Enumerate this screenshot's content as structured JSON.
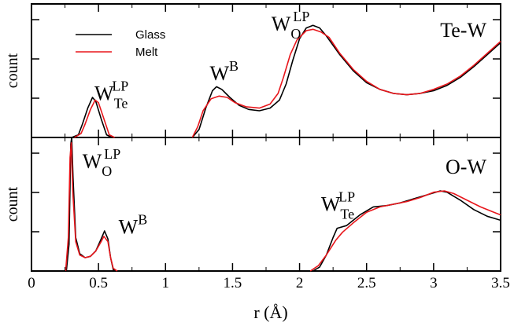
{
  "chart_data": {
    "type": "line",
    "xlabel": "r (Å)",
    "xlim": [
      0,
      3.5
    ],
    "x_ticks": [
      {
        "value": 0,
        "label": "0"
      },
      {
        "value": 0.5,
        "label": "0.5"
      },
      {
        "value": 1,
        "label": "1"
      },
      {
        "value": 1.5,
        "label": "1.5"
      },
      {
        "value": 2,
        "label": "2"
      },
      {
        "value": 2.5,
        "label": "2.5"
      },
      {
        "value": 3,
        "label": "3"
      },
      {
        "value": 3.5,
        "label": "3.5"
      }
    ],
    "legend": {
      "placement": "top-left",
      "entries": [
        {
          "name": "Glass",
          "color": "#000000"
        },
        {
          "name": "Melt",
          "color": "#e8161b"
        }
      ]
    },
    "panels": [
      {
        "id": "top",
        "ylabel": "count",
        "title": "Te-W",
        "ylim": [
          0,
          1
        ],
        "annotations": [
          {
            "base": "W",
            "sub": "Te",
            "sup": "LP",
            "x": 0.47,
            "y": 0.28
          },
          {
            "base": "W",
            "sub": "",
            "sup": "B",
            "x": 1.33,
            "y": 0.43
          },
          {
            "base": "W",
            "sub": "O",
            "sup": "LP",
            "x": 1.79,
            "y": 0.8
          }
        ],
        "series": [
          {
            "name": "Glass",
            "points": [
              [
                0.3,
                0.0
              ],
              [
                0.35,
                0.02
              ],
              [
                0.38,
                0.1
              ],
              [
                0.42,
                0.22
              ],
              [
                0.455,
                0.3
              ],
              [
                0.48,
                0.27
              ],
              [
                0.52,
                0.14
              ],
              [
                0.56,
                0.02
              ],
              [
                0.6,
                0.0
              ],
              null,
              [
                1.2,
                0.0
              ],
              [
                1.25,
                0.06
              ],
              [
                1.3,
                0.22
              ],
              [
                1.35,
                0.35
              ],
              [
                1.38,
                0.38
              ],
              [
                1.42,
                0.36
              ],
              [
                1.48,
                0.3
              ],
              [
                1.55,
                0.24
              ],
              [
                1.62,
                0.21
              ],
              [
                1.7,
                0.2
              ],
              [
                1.78,
                0.22
              ],
              [
                1.85,
                0.28
              ],
              [
                1.9,
                0.4
              ],
              [
                1.95,
                0.58
              ],
              [
                2.0,
                0.74
              ],
              [
                2.05,
                0.82
              ],
              [
                2.1,
                0.84
              ],
              [
                2.15,
                0.82
              ],
              [
                2.2,
                0.76
              ],
              [
                2.3,
                0.62
              ],
              [
                2.4,
                0.5
              ],
              [
                2.5,
                0.41
              ],
              [
                2.6,
                0.36
              ],
              [
                2.7,
                0.33
              ],
              [
                2.8,
                0.32
              ],
              [
                2.9,
                0.33
              ],
              [
                3.0,
                0.35
              ],
              [
                3.1,
                0.39
              ],
              [
                3.2,
                0.45
              ],
              [
                3.3,
                0.53
              ],
              [
                3.4,
                0.62
              ],
              [
                3.5,
                0.71
              ]
            ]
          },
          {
            "name": "Melt",
            "points": [
              [
                0.32,
                0.0
              ],
              [
                0.37,
                0.03
              ],
              [
                0.4,
                0.1
              ],
              [
                0.44,
                0.21
              ],
              [
                0.475,
                0.28
              ],
              [
                0.5,
                0.26
              ],
              [
                0.54,
                0.14
              ],
              [
                0.58,
                0.02
              ],
              [
                0.62,
                0.0
              ],
              null,
              [
                1.2,
                0.0
              ],
              [
                1.24,
                0.08
              ],
              [
                1.28,
                0.2
              ],
              [
                1.34,
                0.29
              ],
              [
                1.4,
                0.31
              ],
              [
                1.46,
                0.3
              ],
              [
                1.52,
                0.26
              ],
              [
                1.6,
                0.23
              ],
              [
                1.7,
                0.22
              ],
              [
                1.78,
                0.25
              ],
              [
                1.84,
                0.33
              ],
              [
                1.88,
                0.45
              ],
              [
                1.93,
                0.62
              ],
              [
                1.98,
                0.73
              ],
              [
                2.05,
                0.8
              ],
              [
                2.1,
                0.81
              ],
              [
                2.16,
                0.79
              ],
              [
                2.22,
                0.75
              ],
              [
                2.3,
                0.63
              ],
              [
                2.4,
                0.51
              ],
              [
                2.5,
                0.42
              ],
              [
                2.6,
                0.36
              ],
              [
                2.7,
                0.33
              ],
              [
                2.8,
                0.32
              ],
              [
                2.9,
                0.33
              ],
              [
                3.0,
                0.36
              ],
              [
                3.1,
                0.4
              ],
              [
                3.2,
                0.46
              ],
              [
                3.3,
                0.54
              ],
              [
                3.4,
                0.63
              ],
              [
                3.5,
                0.72
              ]
            ]
          }
        ]
      },
      {
        "id": "bottom",
        "ylabel": "count",
        "title": "O-W",
        "ylim": [
          0,
          1
        ],
        "annotations": [
          {
            "base": "W",
            "sub": "O",
            "sup": "LP",
            "x": 0.38,
            "y": 0.77
          },
          {
            "base": "W",
            "sub": "",
            "sup": "B",
            "x": 0.65,
            "y": 0.28
          },
          {
            "base": "W",
            "sub": "Te",
            "sup": "LP",
            "x": 2.16,
            "y": 0.45
          }
        ],
        "series": [
          {
            "name": "Glass",
            "points": [
              [
                0.26,
                0.0
              ],
              [
                0.28,
                0.2
              ],
              [
                0.293,
                0.95
              ],
              [
                0.3,
                1.0
              ],
              [
                0.31,
                0.7
              ],
              [
                0.33,
                0.25
              ],
              [
                0.36,
                0.13
              ],
              [
                0.4,
                0.1
              ],
              [
                0.44,
                0.11
              ],
              [
                0.48,
                0.15
              ],
              [
                0.52,
                0.24
              ],
              [
                0.545,
                0.3
              ],
              [
                0.57,
                0.24
              ],
              [
                0.59,
                0.1
              ],
              [
                0.61,
                0.01
              ],
              [
                0.63,
                0.0
              ],
              null,
              [
                2.1,
                0.0
              ],
              [
                2.15,
                0.03
              ],
              [
                2.2,
                0.12
              ],
              [
                2.25,
                0.25
              ],
              [
                2.28,
                0.32
              ],
              [
                2.35,
                0.34
              ],
              [
                2.45,
                0.42
              ],
              [
                2.55,
                0.48
              ],
              [
                2.65,
                0.49
              ],
              [
                2.75,
                0.51
              ],
              [
                2.85,
                0.54
              ],
              [
                2.95,
                0.57
              ],
              [
                3.05,
                0.6
              ],
              [
                3.1,
                0.59
              ],
              [
                3.2,
                0.53
              ],
              [
                3.3,
                0.46
              ],
              [
                3.4,
                0.41
              ],
              [
                3.5,
                0.38
              ]
            ]
          },
          {
            "name": "Melt",
            "points": [
              [
                0.255,
                0.0
              ],
              [
                0.275,
                0.25
              ],
              [
                0.288,
                0.85
              ],
              [
                0.297,
                0.96
              ],
              [
                0.308,
                0.6
              ],
              [
                0.33,
                0.22
              ],
              [
                0.36,
                0.12
              ],
              [
                0.4,
                0.1
              ],
              [
                0.44,
                0.11
              ],
              [
                0.48,
                0.15
              ],
              [
                0.52,
                0.22
              ],
              [
                0.54,
                0.26
              ],
              [
                0.57,
                0.22
              ],
              [
                0.59,
                0.1
              ],
              [
                0.61,
                0.02
              ],
              [
                0.64,
                0.0
              ],
              null,
              [
                2.08,
                0.0
              ],
              [
                2.14,
                0.04
              ],
              [
                2.2,
                0.12
              ],
              [
                2.27,
                0.23
              ],
              [
                2.32,
                0.29
              ],
              [
                2.4,
                0.36
              ],
              [
                2.5,
                0.44
              ],
              [
                2.6,
                0.48
              ],
              [
                2.7,
                0.5
              ],
              [
                2.8,
                0.52
              ],
              [
                2.9,
                0.55
              ],
              [
                3.0,
                0.59
              ],
              [
                3.08,
                0.6
              ],
              [
                3.15,
                0.58
              ],
              [
                3.25,
                0.53
              ],
              [
                3.35,
                0.48
              ],
              [
                3.45,
                0.44
              ],
              [
                3.5,
                0.42
              ]
            ]
          }
        ]
      }
    ]
  }
}
